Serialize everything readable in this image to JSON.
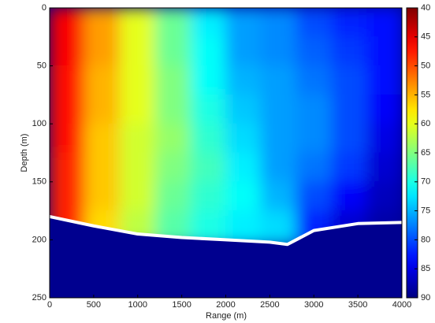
{
  "chart_data": {
    "type": "heatmap",
    "xlabel": "Range (m)",
    "ylabel": "Depth (m)",
    "xlim": [
      0,
      4000
    ],
    "xticks": [
      0,
      500,
      1000,
      1500,
      2000,
      2500,
      3000,
      3500,
      4000
    ],
    "ylim": [
      0,
      250
    ],
    "yticks": [
      0,
      50,
      100,
      150,
      200,
      250
    ],
    "y_reversed": true,
    "xbins": [
      0,
      400,
      800,
      1200,
      1600,
      2000,
      2400,
      2800,
      3200,
      3600,
      4000
    ],
    "ybins": [
      0,
      25,
      50,
      75,
      100,
      125,
      150,
      175,
      205
    ],
    "values": [
      [
        46,
        54,
        60,
        66,
        72,
        76,
        77,
        80,
        82,
        83
      ],
      [
        46,
        54,
        60,
        66,
        71,
        76,
        77,
        79,
        81,
        83
      ],
      [
        47,
        55,
        60,
        65,
        71,
        75,
        76,
        78,
        80,
        83
      ],
      [
        47,
        55,
        60,
        65,
        70,
        74,
        76,
        77,
        80,
        84
      ],
      [
        47,
        56,
        61,
        64,
        69,
        73,
        76,
        77,
        80,
        85
      ],
      [
        48,
        56,
        61,
        65,
        68,
        72,
        76,
        78,
        81,
        86
      ],
      [
        48,
        56,
        61,
        66,
        69,
        71,
        75,
        80,
        84,
        87
      ],
      [
        48,
        57,
        62,
        67,
        70,
        72,
        73,
        82,
        86,
        88
      ]
    ],
    "colormap": "jet",
    "colormap_reversed": true,
    "clim": [
      40,
      90
    ],
    "cticks": [
      40,
      45,
      50,
      55,
      60,
      65,
      70,
      75,
      80,
      85,
      90
    ],
    "mask_color": "#00008f",
    "seabed": {
      "x": [
        0,
        500,
        1000,
        1500,
        2000,
        2500,
        2700,
        3000,
        3500,
        4000
      ],
      "values": [
        180,
        188,
        195,
        198,
        200,
        202,
        204,
        192,
        186,
        185
      ],
      "color": "#ffffff"
    }
  }
}
